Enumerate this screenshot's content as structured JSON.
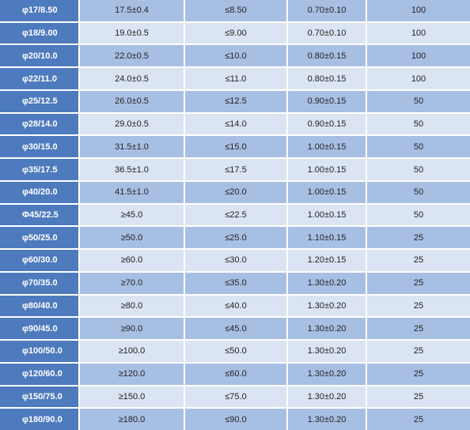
{
  "table": {
    "rows": [
      [
        "φ17/8.50",
        "17.5±0.4",
        "≤8.50",
        "0.70±0.10",
        "100"
      ],
      [
        "φ18/9.00",
        "19.0±0.5",
        "≤9.00",
        "0.70±0.10",
        "100"
      ],
      [
        "φ20/10.0",
        "22.0±0.5",
        "≤10.0",
        "0.80±0.15",
        "100"
      ],
      [
        "φ22/11.0",
        "24.0±0.5",
        "≤11.0",
        "0.80±0.15",
        "100"
      ],
      [
        "φ25/12.5",
        "26.0±0.5",
        "≤12.5",
        "0.90±0.15",
        "50"
      ],
      [
        "φ28/14.0",
        "29.0±0.5",
        "≤14.0",
        "0.90±0.15",
        "50"
      ],
      [
        "φ30/15.0",
        "31.5±1.0",
        "≤15.0",
        "1.00±0.15",
        "50"
      ],
      [
        "φ35/17.5",
        "36.5±1.0",
        "≤17.5",
        "1.00±0.15",
        "50"
      ],
      [
        "φ40/20.0",
        "41.5±1.0",
        "≤20.0",
        "1.00±0.15",
        "50"
      ],
      [
        "Φ45/22.5",
        "≥45.0",
        "≤22.5",
        "1.00±0.15",
        "50"
      ],
      [
        "φ50/25.0",
        "≥50.0",
        "≤25.0",
        "1.10±0.15",
        "25"
      ],
      [
        "φ60/30.0",
        "≥60.0",
        "≤30.0",
        "1.20±0.15",
        "25"
      ],
      [
        "φ70/35.0",
        "≥70.0",
        "≤35.0",
        "1.30±0.20",
        "25"
      ],
      [
        "φ80/40.0",
        "≥80.0",
        "≤40.0",
        "1.30±0.20",
        "25"
      ],
      [
        "φ90/45.0",
        "≥90.0",
        "≤45.0",
        "1.30±0.20",
        "25"
      ],
      [
        "φ100/50.0",
        "≥100.0",
        "≤50.0",
        "1.30±0.20",
        "25"
      ],
      [
        "φ120/60.0",
        "≥120.0",
        "≤60.0",
        "1.30±0.20",
        "25"
      ],
      [
        "φ150/75.0",
        "≥150.0",
        "≤75.0",
        "1.30±0.20",
        "25"
      ],
      [
        "φ180/90.0",
        "≥180.0",
        "≤90.0",
        "1.30±0.20",
        "25"
      ]
    ]
  }
}
